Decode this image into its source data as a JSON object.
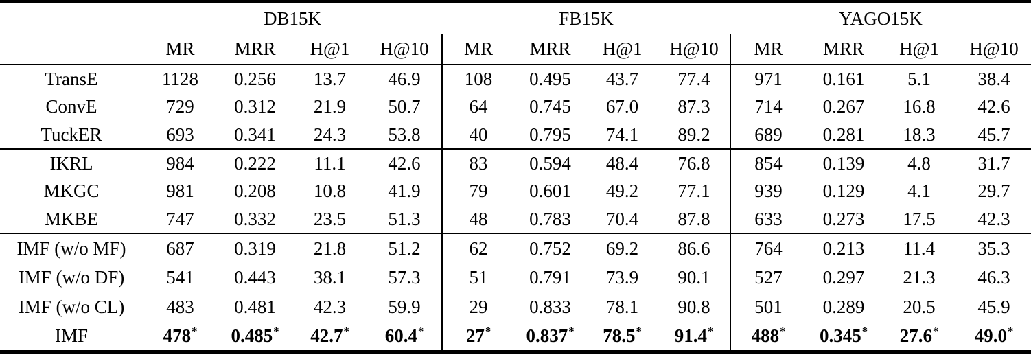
{
  "table": {
    "method_col_header": "",
    "groups": [
      {
        "label": "DB15K"
      },
      {
        "label": "FB15K"
      },
      {
        "label": "YAGO15K"
      }
    ],
    "metrics": [
      "MR",
      "MRR",
      "H@1",
      "H@10"
    ],
    "star_marker": "*",
    "colors": {
      "text": "#000000",
      "background": "#ffffff",
      "rule": "#000000"
    },
    "sections": [
      {
        "rows": [
          {
            "method": "TransE",
            "bold": false,
            "starred": false,
            "values": [
              "1128",
              "0.256",
              "13.7",
              "46.9",
              "108",
              "0.495",
              "43.7",
              "77.4",
              "971",
              "0.161",
              "5.1",
              "38.4"
            ]
          },
          {
            "method": "ConvE",
            "bold": false,
            "starred": false,
            "values": [
              "729",
              "0.312",
              "21.9",
              "50.7",
              "64",
              "0.745",
              "67.0",
              "87.3",
              "714",
              "0.267",
              "16.8",
              "42.6"
            ]
          },
          {
            "method": "TuckER",
            "bold": false,
            "starred": false,
            "values": [
              "693",
              "0.341",
              "24.3",
              "53.8",
              "40",
              "0.795",
              "74.1",
              "89.2",
              "689",
              "0.281",
              "18.3",
              "45.7"
            ]
          }
        ]
      },
      {
        "rows": [
          {
            "method": "IKRL",
            "bold": false,
            "starred": false,
            "values": [
              "984",
              "0.222",
              "11.1",
              "42.6",
              "83",
              "0.594",
              "48.4",
              "76.8",
              "854",
              "0.139",
              "4.8",
              "31.7"
            ]
          },
          {
            "method": "MKGC",
            "bold": false,
            "starred": false,
            "values": [
              "981",
              "0.208",
              "10.8",
              "41.9",
              "79",
              "0.601",
              "49.2",
              "77.1",
              "939",
              "0.129",
              "4.1",
              "29.7"
            ]
          },
          {
            "method": "MKBE",
            "bold": false,
            "starred": false,
            "values": [
              "747",
              "0.332",
              "23.5",
              "51.3",
              "48",
              "0.783",
              "70.4",
              "87.8",
              "633",
              "0.273",
              "17.5",
              "42.3"
            ]
          }
        ]
      },
      {
        "rows": [
          {
            "method": "IMF (w/o MF)",
            "bold": false,
            "starred": false,
            "values": [
              "687",
              "0.319",
              "21.8",
              "51.2",
              "62",
              "0.752",
              "69.2",
              "86.6",
              "764",
              "0.213",
              "11.4",
              "35.3"
            ]
          },
          {
            "method": "IMF (w/o DF)",
            "bold": false,
            "starred": false,
            "values": [
              "541",
              "0.443",
              "38.1",
              "57.3",
              "51",
              "0.791",
              "73.9",
              "90.1",
              "527",
              "0.297",
              "21.3",
              "46.3"
            ]
          },
          {
            "method": "IMF (w/o CL)",
            "bold": false,
            "starred": false,
            "values": [
              "483",
              "0.481",
              "42.3",
              "59.9",
              "29",
              "0.833",
              "78.1",
              "90.8",
              "501",
              "0.289",
              "20.5",
              "45.9"
            ]
          },
          {
            "method": "IMF",
            "bold": true,
            "starred": true,
            "values": [
              "478",
              "0.485",
              "42.7",
              "60.4",
              "27",
              "0.837",
              "78.5",
              "91.4",
              "488",
              "0.345",
              "27.6",
              "49.0"
            ]
          }
        ]
      }
    ]
  }
}
